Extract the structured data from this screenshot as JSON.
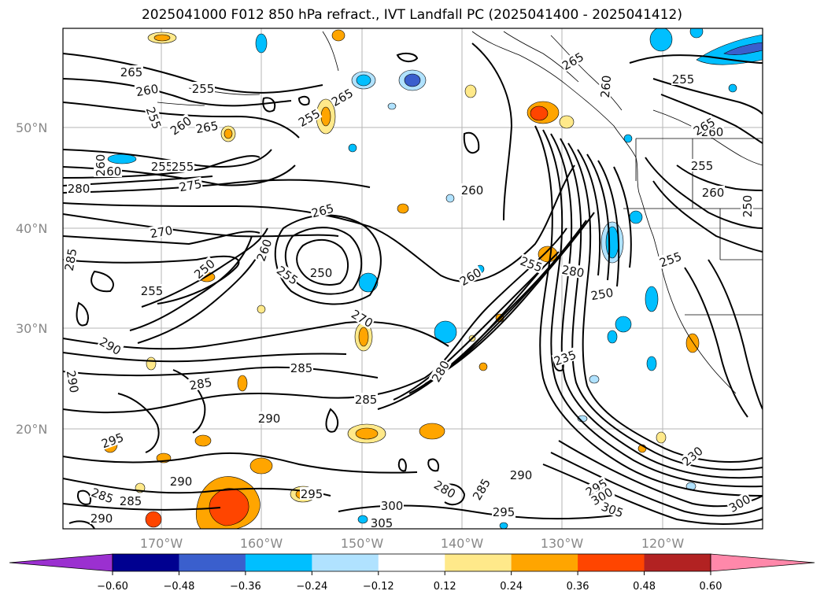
{
  "title": "2025041000 F012 850 hPa refract., IVT Landfall PC (2025041400 - 2025041412)",
  "latitudes": [
    "50°N",
    "40°N",
    "30°N",
    "20°N"
  ],
  "longitudes": [
    "170°W",
    "160°W",
    "150°W",
    "140°W",
    "130°W",
    "120°W"
  ],
  "colorbar": {
    "ticks": [
      "−0.60",
      "−0.48",
      "−0.36",
      "−0.24",
      "−0.12",
      "0.12",
      "0.24",
      "0.36",
      "0.48",
      "0.60"
    ],
    "colors": [
      "#9b30d0",
      "#000090",
      "#3a5fcd",
      "#00bfff",
      "#b0e2ff",
      "#ffffff",
      "#ffe98a",
      "#ffa500",
      "#ff4500",
      "#b22222",
      "#ff88aa"
    ]
  },
  "contour_labels": [
    "265",
    "260",
    "255",
    "255",
    "260",
    "255",
    "265",
    "265",
    "260",
    "260",
    "260",
    "265",
    "255",
    "265",
    "255",
    "260",
    "250",
    "260",
    "255",
    "255",
    "280",
    "275",
    "260",
    "255",
    "255",
    "260",
    "270",
    "265",
    "260",
    "255",
    "250",
    "280",
    "250",
    "250",
    "255",
    "270",
    "285",
    "285",
    "285",
    "280",
    "235",
    "285",
    "290",
    "290",
    "230",
    "285",
    "285",
    "290",
    "290",
    "290",
    "295",
    "295",
    "300",
    "305",
    "295",
    "280",
    "285",
    "290",
    "295",
    "300",
    "305",
    "300"
  ]
}
